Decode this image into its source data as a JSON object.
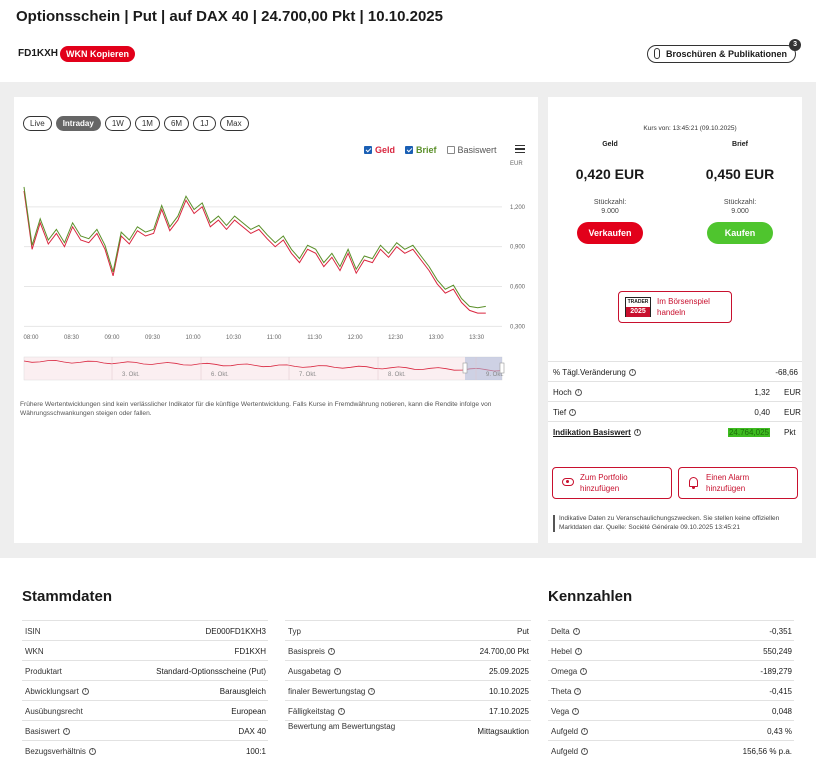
{
  "header": {
    "title": "Optionsschein | Put | auf DAX 40 | 24.700,00 Pkt | 10.10.2025",
    "wkn": "FD1KXH",
    "wkn_copy_label": "WKN Kopieren",
    "brochures_label": "Broschüren & Publikationen",
    "brochures_count": "3"
  },
  "chart": {
    "range_buttons": [
      "Live",
      "Intraday",
      "1W",
      "1M",
      "6M",
      "1J",
      "Max"
    ],
    "active_range": "Intraday",
    "legend": {
      "geld": "Geld",
      "brief": "Brief",
      "basiswert": "Basiswert"
    },
    "disclaimer": "Frühere Wertentwicklungen sind kein verlässlicher Indikator für die künftige Wertentwicklung. Falls Kurse in Fremdwährung notieren, kann die Rendite infolge von Währungsschwankungen steigen oder fallen.",
    "navigator_labels": [
      "3. Okt.",
      "6. Okt.",
      "7. Okt.",
      "8. Okt.",
      "9. Okt."
    ]
  },
  "chart_data": {
    "type": "line",
    "ylabel": "EUR",
    "ylim": [
      0.28,
      1.5
    ],
    "y_ticks": [
      "1,200",
      "0,900",
      "0,600",
      "0,300"
    ],
    "y_tick_values": [
      1.2,
      0.9,
      0.6,
      0.3
    ],
    "x_ticks": [
      "08:00",
      "08:30",
      "09:00",
      "09:30",
      "10:00",
      "10:30",
      "11:00",
      "11:30",
      "12:00",
      "12:30",
      "13:00",
      "13:30"
    ],
    "legend_position": "top-right",
    "grid": true,
    "colors": {
      "geld": "#d9263f",
      "brief": "#5a8f29"
    },
    "series": [
      {
        "name": "Geld",
        "x_hours": [
          8.0,
          8.1,
          8.2,
          8.3,
          8.4,
          8.5,
          8.6,
          8.7,
          8.8,
          8.9,
          9.0,
          9.1,
          9.2,
          9.3,
          9.4,
          9.5,
          9.6,
          9.7,
          9.8,
          9.9,
          10.0,
          10.1,
          10.2,
          10.3,
          10.4,
          10.5,
          10.6,
          10.7,
          10.8,
          10.9,
          11.0,
          11.1,
          11.2,
          11.3,
          11.4,
          11.5,
          11.6,
          11.7,
          11.8,
          11.9,
          12.0,
          12.1,
          12.2,
          12.3,
          12.4,
          12.5,
          12.6,
          12.7,
          12.8,
          12.9,
          13.0,
          13.1,
          13.2,
          13.3,
          13.4,
          13.5,
          13.6,
          13.7
        ],
        "values": [
          1.32,
          0.88,
          1.08,
          0.92,
          1.0,
          0.9,
          1.05,
          0.95,
          0.93,
          1.0,
          0.88,
          0.68,
          0.98,
          0.92,
          1.02,
          0.98,
          1.0,
          1.18,
          1.02,
          1.1,
          1.25,
          1.15,
          1.2,
          1.05,
          1.1,
          1.03,
          1.1,
          1.05,
          1.0,
          1.03,
          0.96,
          0.9,
          0.95,
          0.85,
          0.78,
          0.88,
          0.85,
          0.75,
          0.82,
          0.72,
          0.85,
          0.7,
          0.8,
          0.78,
          0.88,
          0.82,
          0.9,
          0.85,
          0.88,
          0.8,
          0.72,
          0.62,
          0.55,
          0.58,
          0.48,
          0.42,
          0.4,
          0.4
        ]
      },
      {
        "name": "Brief",
        "x_hours": [
          8.0,
          8.1,
          8.2,
          8.3,
          8.4,
          8.5,
          8.6,
          8.7,
          8.8,
          8.9,
          9.0,
          9.1,
          9.2,
          9.3,
          9.4,
          9.5,
          9.6,
          9.7,
          9.8,
          9.9,
          10.0,
          10.1,
          10.2,
          10.3,
          10.4,
          10.5,
          10.6,
          10.7,
          10.8,
          10.9,
          11.0,
          11.1,
          11.2,
          11.3,
          11.4,
          11.5,
          11.6,
          11.7,
          11.8,
          11.9,
          12.0,
          12.1,
          12.2,
          12.3,
          12.4,
          12.5,
          12.6,
          12.7,
          12.8,
          12.9,
          13.0,
          13.1,
          13.2,
          13.3,
          13.4,
          13.5,
          13.6,
          13.7
        ],
        "values": [
          1.35,
          0.91,
          1.11,
          0.95,
          1.03,
          0.93,
          1.08,
          0.98,
          0.96,
          1.03,
          0.91,
          0.71,
          1.01,
          0.95,
          1.05,
          1.01,
          1.03,
          1.21,
          1.05,
          1.13,
          1.28,
          1.18,
          1.23,
          1.08,
          1.13,
          1.06,
          1.13,
          1.08,
          1.03,
          1.06,
          0.99,
          0.93,
          0.98,
          0.88,
          0.81,
          0.91,
          0.88,
          0.78,
          0.85,
          0.75,
          0.88,
          0.73,
          0.83,
          0.81,
          0.91,
          0.85,
          0.93,
          0.88,
          0.91,
          0.83,
          0.75,
          0.65,
          0.58,
          0.61,
          0.51,
          0.45,
          0.44,
          0.45
        ]
      }
    ]
  },
  "quote": {
    "kurs_von": "Kurs von: 13:45:21 (09.10.2025)",
    "geld": {
      "label": "Geld",
      "price": "0,420 EUR",
      "stueckzahl_label": "Stückzahl:",
      "stueckzahl": "9.000",
      "button": "Verkaufen"
    },
    "brief": {
      "label": "Brief",
      "price": "0,450 EUR",
      "stueckzahl_label": "Stückzahl:",
      "stueckzahl": "9.000",
      "button": "Kaufen"
    },
    "trader": {
      "logo_top": "TRADER",
      "logo_year": "2025",
      "text_line1": "Im Börsenspiel",
      "text_line2": "handeln"
    },
    "stats": [
      {
        "label": "% Tägl.Veränderung",
        "value": "-68,66",
        "unit": ""
      },
      {
        "label": "Hoch",
        "value": "1,32",
        "unit": "EUR"
      },
      {
        "label": "Tief",
        "value": "0,40",
        "unit": "EUR"
      },
      {
        "label": "Indikation Basiswert",
        "value": "24.764,025",
        "unit": "Pkt"
      }
    ],
    "portfolio_line1": "Zum Portfolio",
    "portfolio_line2": "hinzufügen",
    "alarm_line1": "Einen Alarm",
    "alarm_line2": "hinzufügen",
    "note": "Indikative Daten zu Veranschaulichungszwecken. Sie stellen keine offiziellen Marktdaten dar. Quelle: Société Générale 09.10.2025 13:45:21"
  },
  "stammdaten": {
    "title": "Stammdaten",
    "left": [
      {
        "label": "ISIN",
        "value": "DE000FD1KXH3",
        "info": false
      },
      {
        "label": "WKN",
        "value": "FD1KXH",
        "info": false
      },
      {
        "label": "Produktart",
        "value": "Standard-Optionsscheine (Put)",
        "info": false
      },
      {
        "label": "Abwicklungsart",
        "value": "Barausgleich",
        "info": true
      },
      {
        "label": "Ausübungsrecht",
        "value": "European",
        "info": false
      },
      {
        "label": "Basiswert",
        "value": "DAX 40",
        "info": true
      },
      {
        "label": "Bezugsverhältnis",
        "value": "100:1",
        "info": true
      }
    ],
    "right": [
      {
        "label": "Typ",
        "value": "Put",
        "info": false
      },
      {
        "label": "Basispreis",
        "value": "24.700,00 Pkt",
        "info": true
      },
      {
        "label": "Ausgabetag",
        "value": "25.09.2025",
        "info": true
      },
      {
        "label": "finaler Bewertungstag",
        "value": "10.10.2025",
        "info": true
      },
      {
        "label": "Fälligkeitstag",
        "value": "17.10.2025",
        "info": true
      },
      {
        "label": "Bewertung am Bewertungstag",
        "value": "Mittagsauktion",
        "info": false
      }
    ]
  },
  "kennzahlen": {
    "title": "Kennzahlen",
    "rows": [
      {
        "label": "Delta",
        "value": "-0,351"
      },
      {
        "label": "Hebel",
        "value": "550,249"
      },
      {
        "label": "Omega",
        "value": "-189,279"
      },
      {
        "label": "Theta",
        "value": "-0,415"
      },
      {
        "label": "Vega",
        "value": "0,048"
      },
      {
        "label": "Aufgeld",
        "value": "0,43 %"
      },
      {
        "label": "Aufgeld",
        "value": "156,56 % p.a."
      }
    ]
  }
}
